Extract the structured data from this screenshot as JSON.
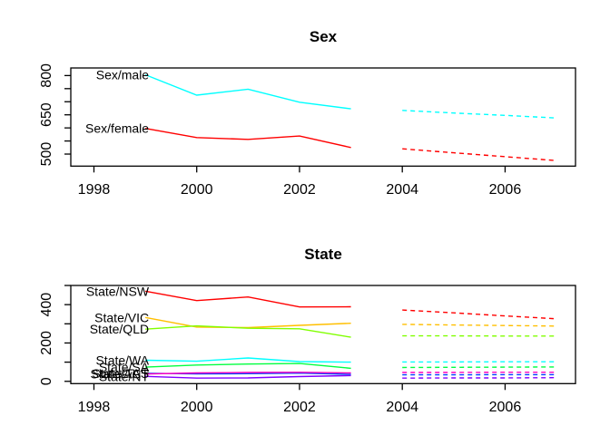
{
  "panel": {
    "background": "#ffffff",
    "axis_color": "#000000",
    "text_color": "#000000"
  },
  "chart_data": [
    {
      "type": "line",
      "title": "Sex",
      "xlabel": "",
      "ylabel": "",
      "grid": false,
      "legend": "labels-at-line-start",
      "x_range": [
        1997.55,
        2007.37
      ],
      "y_range": [
        454,
        829
      ],
      "x_ticks": [
        1998,
        2000,
        2002,
        2004,
        2006
      ],
      "x_tick_labels": [
        "1998",
        "2000",
        "2002",
        "2004",
        "2006"
      ],
      "y_ticks": [
        500,
        550,
        600,
        650,
        700,
        750,
        800
      ],
      "y_tick_labels": {
        "500": "500",
        "650": "650",
        "800": "800"
      },
      "observed_x": [
        1999,
        2000,
        2001,
        2002,
        2003
      ],
      "forecast_x": [
        2004,
        2005,
        2006,
        2007
      ],
      "series": [
        {
          "label": "Sex/male",
          "color": "#00FFFF",
          "observed_y": [
            803,
            725,
            748,
            698,
            673
          ],
          "forecast_y": [
            667,
            657,
            648,
            638
          ]
        },
        {
          "label": "Sex/female",
          "color": "#FF0000",
          "observed_y": [
            598,
            563,
            556,
            569,
            525
          ],
          "forecast_y": [
            520,
            505,
            490,
            475
          ]
        }
      ]
    },
    {
      "type": "line",
      "title": "State",
      "xlabel": "",
      "ylabel": "",
      "grid": false,
      "legend": "labels-at-line-start",
      "x_range": [
        1997.55,
        2007.37
      ],
      "y_range": [
        -12,
        500
      ],
      "x_ticks": [
        1998,
        2000,
        2002,
        2004,
        2006
      ],
      "x_tick_labels": [
        "1998",
        "2000",
        "2002",
        "2004",
        "2006"
      ],
      "y_ticks": [
        0,
        100,
        200,
        300,
        400,
        500
      ],
      "y_tick_labels": {
        "0": "0",
        "200": "200",
        "400": "400"
      },
      "observed_x": [
        1999,
        2000,
        2001,
        2002,
        2003
      ],
      "forecast_x": [
        2004,
        2005,
        2006,
        2007
      ],
      "series": [
        {
          "label": "State/NSW",
          "color": "#FF0000",
          "observed_y": [
            470,
            421,
            440,
            388,
            389
          ],
          "forecast_y": [
            372,
            357,
            341,
            326
          ]
        },
        {
          "label": "State/VIC",
          "color": "#FFBF00",
          "observed_y": [
            333,
            283,
            280,
            292,
            303
          ],
          "forecast_y": [
            297,
            294,
            291,
            288
          ]
        },
        {
          "label": "State/QLD",
          "color": "#80FF00",
          "observed_y": [
            272,
            289,
            277,
            274,
            230
          ],
          "forecast_y": [
            237,
            237,
            236,
            236
          ]
        },
        {
          "label": "State/SA",
          "color": "#00FF40",
          "observed_y": [
            74,
            85,
            90,
            93,
            68
          ],
          "forecast_y": [
            72,
            73,
            74,
            75
          ]
        },
        {
          "label": "State/WA",
          "color": "#00FFFF",
          "observed_y": [
            110,
            105,
            122,
            103,
            100
          ],
          "forecast_y": [
            101,
            101,
            102,
            102
          ]
        },
        {
          "label": "State/TAS",
          "color": "#0040FF",
          "observed_y": [
            42,
            39,
            40,
            43,
            36
          ],
          "forecast_y": [
            34,
            34,
            35,
            35
          ]
        },
        {
          "label": "State/NT",
          "color": "#8000FF",
          "observed_y": [
            26,
            17,
            18,
            25,
            30
          ],
          "forecast_y": [
            17,
            18,
            18,
            19
          ]
        },
        {
          "label": "State/ACT",
          "color": "#FF00BF",
          "observed_y": [
            38,
            44,
            46,
            47,
            44
          ],
          "forecast_y": [
            46,
            46,
            47,
            47
          ]
        }
      ]
    }
  ]
}
